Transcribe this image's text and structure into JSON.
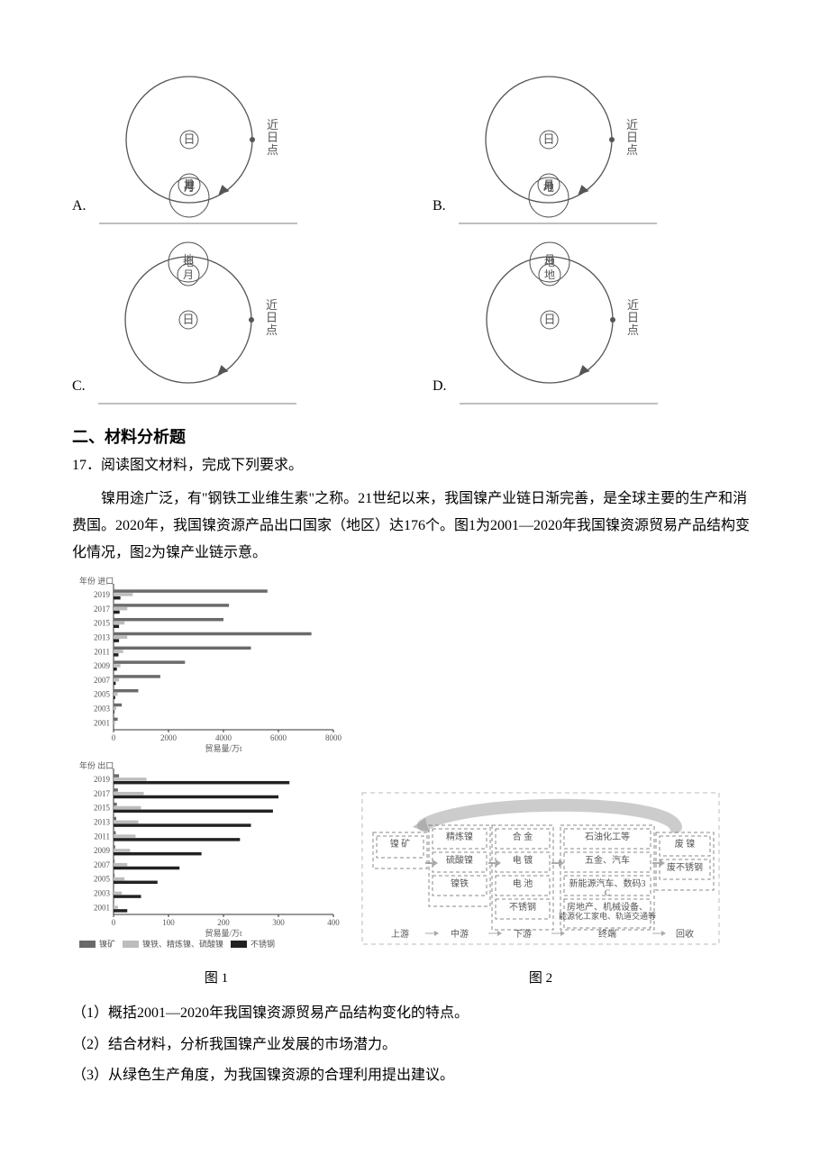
{
  "options": {
    "perihelion_label": "近日点",
    "sun": "日",
    "moon": "月",
    "earth": "地",
    "items": [
      {
        "letter": "A.",
        "variant": "bottom-em"
      },
      {
        "letter": "B.",
        "variant": "bottom-me"
      },
      {
        "letter": "C.",
        "variant": "top-em"
      },
      {
        "letter": "D.",
        "variant": "top-me"
      }
    ],
    "style": {
      "stroke": "#555555",
      "fill_text": "#555555",
      "bg": "#ffffff",
      "big_r": 70,
      "small_r": 22,
      "tiny_r": 12,
      "label_fs": 13,
      "caption_fs": 11
    }
  },
  "section2": {
    "header": "二、材料分析题",
    "q17_intro": "17．阅读图文材料，完成下列要求。",
    "passage": "镍用途广泛，有\"钢铁工业维生素\"之称。21世纪以来，我国镍产业链日渐完善，是全球主要的生产和消费国。2020年，我国镍资源产品出口国家（地区）达176个。图1为2001—2020年我国镍资源贸易产品结构变化情况，图2为镍产业链示意。"
  },
  "fig1": {
    "import": {
      "title": "年份  进口",
      "xlabel": "贸易量/万t",
      "years": [
        "2019",
        "2017",
        "2015",
        "2013",
        "2011",
        "2009",
        "2007",
        "2005",
        "2003",
        "2001"
      ],
      "xmax": 8000,
      "xticks": [
        0,
        2000,
        4000,
        6000,
        8000
      ],
      "series": [
        {
          "key": "ore",
          "color": "#6a6a6a"
        },
        {
          "key": "mid",
          "color": "#bdbdbd"
        },
        {
          "key": "ss",
          "color": "#222222"
        }
      ],
      "data": {
        "ore": [
          5600,
          4200,
          4000,
          7200,
          5000,
          2600,
          1700,
          900,
          300,
          150
        ],
        "mid": [
          700,
          500,
          400,
          500,
          350,
          250,
          200,
          150,
          100,
          60
        ],
        "ss": [
          250,
          220,
          200,
          200,
          180,
          120,
          80,
          60,
          30,
          15
        ]
      }
    },
    "export": {
      "title": "年份  出口",
      "xlabel": "贸易量/万t",
      "years": [
        "2019",
        "2017",
        "2015",
        "2013",
        "2011",
        "2009",
        "2007",
        "2005",
        "2003",
        "2001"
      ],
      "xmax": 400,
      "xticks": [
        0,
        100,
        200,
        300,
        400
      ],
      "data": {
        "ore": [
          10,
          8,
          6,
          5,
          4,
          3,
          2,
          2,
          1,
          1
        ],
        "mid": [
          60,
          55,
          50,
          45,
          40,
          30,
          25,
          20,
          15,
          8
        ],
        "ss": [
          320,
          300,
          290,
          250,
          230,
          160,
          120,
          80,
          50,
          25
        ]
      }
    },
    "legend": [
      "镍矿",
      "镍铁、精炼镍、硫酸镍",
      "不锈钢"
    ],
    "caption": "图 1",
    "style": {
      "axis": "#333",
      "txt": "#555",
      "fs": 9
    }
  },
  "fig2": {
    "caption": "图 2",
    "cols": [
      {
        "label": "上游",
        "items": [
          "镍  矿"
        ]
      },
      {
        "label": "中游",
        "items": [
          "精炼镍",
          "硫酸镍",
          "镍铁"
        ]
      },
      {
        "label": "下游",
        "items": [
          "合  金",
          "电  镀",
          "电  池",
          "不锈钢"
        ]
      },
      {
        "label": "终端",
        "items": [
          "石油化工等",
          "五金、汽车",
          "新能源汽车、数码3C",
          "房地产、机械设备、能源化工家电、轨道交通等"
        ]
      },
      {
        "label": "回收",
        "items": [
          "废  镍",
          "废不锈钢"
        ]
      }
    ],
    "style": {
      "box_stroke": "#888",
      "box_dash": "4,3",
      "txt": "#555",
      "fs": 10,
      "arrow": "#aaa",
      "outer_stroke": "#bbb",
      "recycle": "#999999"
    }
  },
  "subq": {
    "a": "（1）概括2001—2020年我国镍资源贸易产品结构变化的特点。",
    "b": "（2）结合材料，分析我国镍产业发展的市场潜力。",
    "c": "（3）从绿色生产角度，为我国镍资源的合理利用提出建议。"
  }
}
